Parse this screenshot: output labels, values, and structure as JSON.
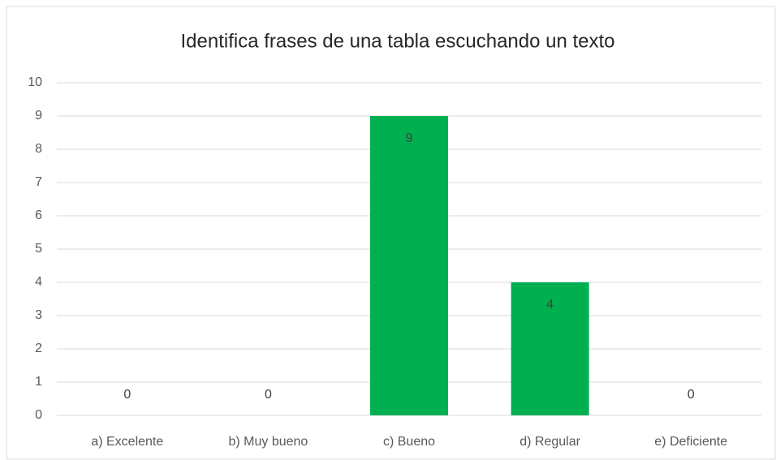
{
  "chart_data": {
    "type": "bar",
    "title": "Identifica frases de una tabla escuchando un texto",
    "categories": [
      "a) Excelente",
      "b) Muy bueno",
      "c) Bueno",
      "d) Regular",
      "e) Deficiente"
    ],
    "values": [
      0,
      0,
      9,
      4,
      0
    ],
    "color": "#00b050",
    "ylim": [
      0,
      10
    ],
    "yticks": [
      0,
      1,
      2,
      3,
      4,
      5,
      6,
      7,
      8,
      9,
      10
    ],
    "grid": true,
    "data_labels": true
  }
}
